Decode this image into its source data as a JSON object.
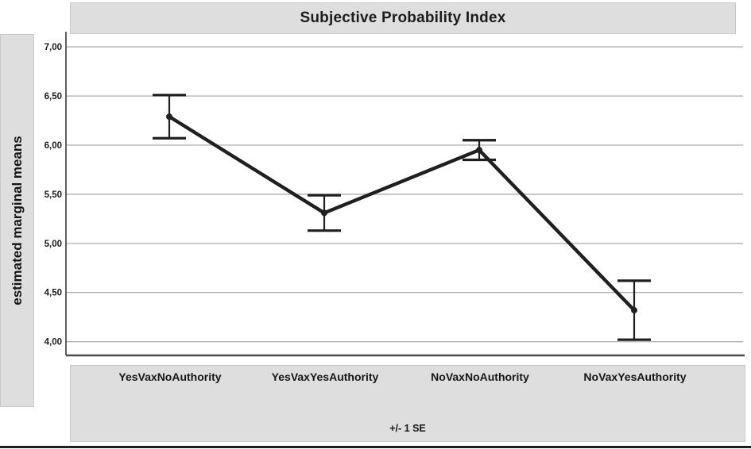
{
  "chart_data": {
    "type": "line",
    "title": "Subjective Probability Index",
    "ylabel": "estimated marginal means",
    "xlabel": "",
    "footnote": "+/- 1 SE",
    "categories": [
      "YesVaxNoAuthority",
      "YesVaxYesAuthority",
      "NoVaxNoAuthority",
      "NoVaxYesAuthority"
    ],
    "series": [
      {
        "name": "estimated marginal means",
        "values": [
          6.29,
          5.31,
          5.95,
          4.32
        ],
        "error_low": [
          6.07,
          5.13,
          5.85,
          4.02
        ],
        "error_high": [
          6.51,
          5.49,
          6.05,
          4.62
        ],
        "error_bar_meaning": "+/- 1 SE"
      }
    ],
    "y_ticks": [
      7.0,
      6.5,
      6.0,
      5.5,
      5.0,
      4.5,
      4.0
    ],
    "y_tick_labels": [
      "7,00",
      "6,50",
      "6,00",
      "5,50",
      "5,00",
      "4,50",
      "4,00"
    ],
    "ylim": [
      3.86,
      7.13
    ],
    "grid": true,
    "legend_position": "none",
    "marker": "dot",
    "colors": {
      "series": "#1f1f1f",
      "gridline": "#b3b3b3",
      "axis": "#4d4d4d",
      "text": "#1c1c1c",
      "band_bg": "#dedede"
    }
  }
}
